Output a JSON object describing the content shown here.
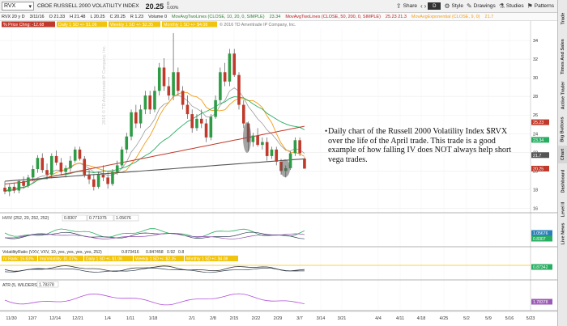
{
  "header": {
    "symbol": "RVX",
    "symbol_dropdown": "▾",
    "description": "CBOE RUSSELL 2000 VOLATILITY INDEX",
    "price": "20.25",
    "change_top": "0",
    "change_bottom": "0.00%",
    "share_label": "Share",
    "d_label": "D",
    "style_label": "Style",
    "drawings_label": "Drawings",
    "studies_label": "Studies",
    "patterns_label": "Patterns"
  },
  "ohlc_bar": {
    "timeframe": "RVX 20 y D",
    "date": "3/11/16",
    "open": "O 21.33",
    "high": "H 21.48",
    "low": "L 20.25",
    "close": "C 20.25",
    "range": "R 1.23",
    "volume": "Volume 0",
    "study1": "MovAvgTwoLines (CLOSE, 10, 20, 0, SIMPLE)",
    "study1_val": "23.34",
    "study2": "MovAvgTwoLines (CLOSE, 50, 200, 0, SIMPLE)",
    "study2_val": "25.23  21.3",
    "study3": "MovAvgExponential (CLOSE, 9, 0)",
    "study3_val": "21.7"
  },
  "price_label_bar": {
    "pct_chg": "% Price Chng: -12.68",
    "daily": "Daily 1 SD +/- $1.06",
    "weekly": "Weekly 1 SD +/- $2.35",
    "monthly": "Monthly 1 SD +/- $4.08",
    "copyright": "© 2016 TD Ameritrade IP Company, Inc."
  },
  "watermark": "2016 © TD Ameritrade IP Company, Inc.",
  "annotation": "Daily chart of the Russell 2000 Volatility Index $RVX over the life of the April trade.  This trade is a good example of how falling IV does NOT always help short vega trades.",
  "hv_panel": {
    "label": "HVIV (252, 20, 252, 252)",
    "v1": "0.8307",
    "v2": "0.771075",
    "v3": "1.05676",
    "axis_tags": [
      "1.05676",
      "0.8307"
    ]
  },
  "vr_panel": {
    "label": "VolatilityRatio (VXV, VXV, 10, yes, yes, yes, yes, 252)",
    "daily": "Daily 1 SD +/- $1.06",
    "weekly": "Weekly 1 SD +/- $2.35",
    "monthly": "Monthly 1 SD +/- $4.08",
    "v1": "0.873416",
    "v2": "0.847458",
    "v3": "0.92",
    "v4": "0.8",
    "iv_rank": "IV Rank: 15.83%",
    "iv_pct": "ImpVolatility: 81.07%",
    "axis_tags": [
      "0.87342"
    ]
  },
  "atr_panel": {
    "label": "ATR (5, WILDERS)",
    "value": "1.78378",
    "axis_tag": "1.78378"
  },
  "sidebar_tabs": [
    "Trade",
    "Times And Sales",
    "Active Trader",
    "Big Buttons",
    "Chart",
    "Dashboard",
    "Level II",
    "Live News"
  ],
  "chart_data": {
    "type": "candlestick",
    "x_tick_labels": [
      "11/30",
      "12/7",
      "12/14",
      "12/21",
      "1/4",
      "1/11",
      "1/18",
      "2/1",
      "2/8",
      "2/15",
      "2/22",
      "2/29",
      "3/7",
      "3/14",
      "3/21",
      "4/4",
      "4/11",
      "4/18",
      "4/25",
      "5/2",
      "5/9",
      "5/16",
      "5/23"
    ],
    "y_ticks": [
      16,
      18,
      20,
      22,
      24,
      26,
      28,
      30,
      32,
      34
    ],
    "ylim": [
      15.6,
      35.4
    ],
    "axis_price_tags": [
      {
        "label": "25.23",
        "color": "#c0392b"
      },
      {
        "label": "23.34",
        "color": "#27ae60"
      },
      {
        "label": "21.7",
        "color": "#555555"
      },
      {
        "label": "20.25",
        "color": "#c0392b"
      }
    ],
    "candles": [
      [
        18.2,
        18.9,
        17.5,
        17.8
      ],
      [
        17.8,
        18.6,
        17.3,
        18.3
      ],
      [
        18.3,
        18.7,
        17.6,
        17.9
      ],
      [
        17.9,
        19.1,
        17.6,
        18.9
      ],
      [
        18.9,
        19.4,
        18.1,
        18.4
      ],
      [
        18.4,
        19.6,
        18.2,
        19.3
      ],
      [
        19.3,
        20.6,
        18.9,
        20.2
      ],
      [
        20.2,
        21.7,
        19.8,
        21.4
      ],
      [
        21.4,
        21.9,
        19.8,
        20.1
      ],
      [
        20.1,
        20.8,
        19.1,
        19.6
      ],
      [
        19.6,
        21.9,
        19.2,
        21.6
      ],
      [
        21.6,
        22.2,
        20.6,
        20.9
      ],
      [
        20.9,
        21.4,
        19.6,
        19.9
      ],
      [
        19.9,
        20.6,
        19.3,
        20.3
      ],
      [
        20.3,
        21.6,
        19.9,
        21.1
      ],
      [
        21.1,
        22.6,
        20.9,
        22.3
      ],
      [
        22.3,
        22.6,
        21.1,
        21.3
      ],
      [
        21.3,
        21.6,
        19.3,
        19.6
      ],
      [
        19.6,
        20.1,
        18.6,
        19.1
      ],
      [
        19.1,
        19.6,
        17.9,
        18.3
      ],
      [
        18.3,
        19.9,
        18.1,
        19.6
      ],
      [
        19.6,
        20.6,
        18.9,
        19.3
      ],
      [
        19.3,
        19.9,
        18.1,
        18.6
      ],
      [
        18.6,
        20.2,
        18.4,
        19.9
      ],
      [
        19.9,
        21.1,
        19.6,
        20.6
      ],
      [
        20.6,
        22.6,
        20.3,
        22.3
      ],
      [
        22.3,
        24.1,
        21.9,
        23.7
      ],
      [
        23.7,
        26.6,
        23.3,
        26.3
      ],
      [
        26.3,
        27.1,
        24.6,
        25.1
      ],
      [
        25.1,
        27.1,
        24.6,
        26.6
      ],
      [
        26.6,
        28.6,
        26.1,
        28.1
      ],
      [
        28.1,
        28.6,
        26.1,
        26.6
      ],
      [
        26.6,
        29.1,
        26.3,
        28.6
      ],
      [
        28.6,
        31.6,
        28.1,
        31.1
      ],
      [
        31.1,
        32.1,
        28.6,
        29.1
      ],
      [
        29.1,
        30.1,
        27.6,
        28.1
      ],
      [
        28.1,
        34.8,
        27.6,
        30.6
      ],
      [
        30.6,
        31.1,
        28.1,
        28.6
      ],
      [
        28.6,
        29.1,
        26.6,
        27.1
      ],
      [
        27.1,
        28.1,
        25.6,
        26.1
      ],
      [
        26.1,
        26.6,
        24.1,
        24.6
      ],
      [
        24.6,
        26.1,
        24.3,
        25.6
      ],
      [
        25.6,
        26.6,
        24.6,
        25.1
      ],
      [
        25.1,
        25.6,
        23.1,
        23.6
      ],
      [
        23.6,
        26.1,
        23.3,
        25.8
      ],
      [
        25.8,
        28.1,
        25.6,
        27.6
      ],
      [
        27.6,
        31.1,
        27.3,
        30.6
      ],
      [
        30.6,
        31.6,
        29.1,
        29.6
      ],
      [
        29.6,
        33.1,
        29.1,
        32.6
      ],
      [
        32.6,
        33.1,
        30.1,
        30.3
      ],
      [
        30.3,
        30.6,
        26.6,
        27.1
      ],
      [
        27.1,
        27.6,
        24.6,
        25.1
      ],
      [
        25.1,
        25.3,
        22.1,
        23.1
      ],
      [
        23.1,
        24.1,
        22.6,
        23.8
      ],
      [
        23.8,
        24.6,
        22.6,
        22.8
      ],
      [
        22.8,
        23.6,
        22.3,
        23.1
      ],
      [
        23.1,
        23.6,
        21.1,
        21.6
      ],
      [
        21.6,
        22.6,
        21.3,
        22.3
      ],
      [
        22.3,
        22.6,
        20.6,
        21.0
      ],
      [
        21.0,
        21.3,
        19.6,
        20.0
      ],
      [
        20.0,
        20.6,
        19.3,
        20.3
      ],
      [
        20.3,
        22.1,
        20.1,
        21.9
      ],
      [
        21.9,
        23.6,
        21.6,
        23.3
      ],
      [
        23.3,
        23.6,
        21.6,
        21.9
      ],
      [
        21.33,
        21.48,
        20.25,
        20.25
      ]
    ]
  }
}
